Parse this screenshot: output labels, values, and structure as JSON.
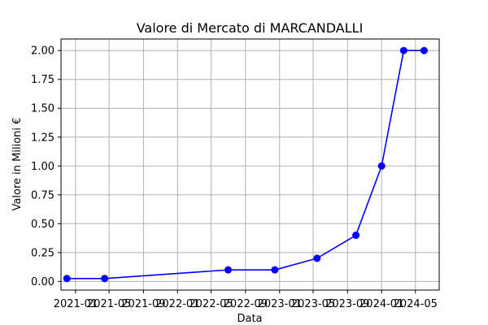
{
  "chart_data": {
    "type": "line",
    "title": "Valore di Mercato di MARCANDALLI",
    "xlabel": "Data",
    "ylabel": "Valore in Milioni €",
    "grid": true,
    "legend": "none",
    "colors": {
      "line": "#0000ff",
      "grid": "#b0b0b0",
      "axes": "#000000"
    },
    "xlim": [
      "2020-11-10",
      "2024-07-25"
    ],
    "ylim": [
      -0.075,
      2.1
    ],
    "x_ticks": [
      {
        "date": "2021-01-01",
        "label": "2021-01"
      },
      {
        "date": "2021-05-01",
        "label": "2021-05"
      },
      {
        "date": "2021-09-01",
        "label": "2021-09"
      },
      {
        "date": "2022-01-01",
        "label": "2022-01"
      },
      {
        "date": "2022-05-01",
        "label": "2022-05"
      },
      {
        "date": "2022-09-01",
        "label": "2022-09"
      },
      {
        "date": "2023-01-01",
        "label": "2023-01"
      },
      {
        "date": "2023-05-01",
        "label": "2023-05"
      },
      {
        "date": "2023-09-01",
        "label": "2023-09"
      },
      {
        "date": "2024-01-01",
        "label": "2024-01"
      },
      {
        "date": "2024-05-01",
        "label": "2024-05"
      }
    ],
    "y_ticks": [
      {
        "value": 0.0,
        "label": "0.00"
      },
      {
        "value": 0.25,
        "label": "0.25"
      },
      {
        "value": 0.5,
        "label": "0.50"
      },
      {
        "value": 0.75,
        "label": "0.75"
      },
      {
        "value": 1.0,
        "label": "1.00"
      },
      {
        "value": 1.25,
        "label": "1.25"
      },
      {
        "value": 1.5,
        "label": "1.50"
      },
      {
        "value": 1.75,
        "label": "1.75"
      },
      {
        "value": 2.0,
        "label": "2.00"
      }
    ],
    "series": [
      {
        "x": [
          "2020-12-01",
          "2021-04-15",
          "2022-07-01",
          "2022-12-15",
          "2023-05-15",
          "2023-10-01",
          "2024-01-01",
          "2024-03-20",
          "2024-06-01"
        ],
        "y": [
          0.025,
          0.025,
          0.1,
          0.1,
          0.2,
          0.4,
          1.0,
          2.0,
          2.0
        ]
      }
    ]
  }
}
